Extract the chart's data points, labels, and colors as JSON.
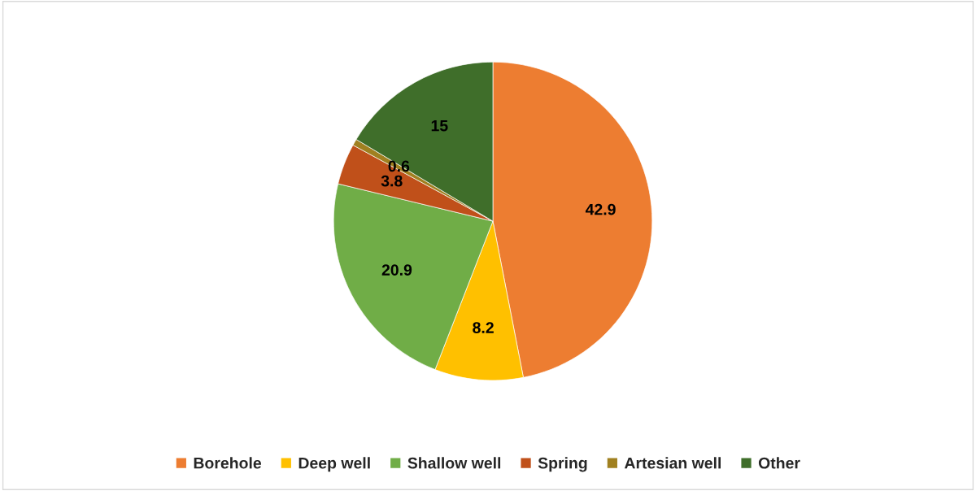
{
  "chart_data": {
    "type": "pie",
    "categories": [
      "Borehole",
      "Deep well",
      "Shallow well",
      "Spring",
      "Artesian well",
      "Other"
    ],
    "values": [
      42.9,
      8.2,
      20.9,
      3.8,
      0.6,
      15
    ],
    "colors": [
      "#ed7d31",
      "#ffc000",
      "#70ad47",
      "#c0501a",
      "#a08020",
      "#3f6e2a"
    ],
    "data_labels": true,
    "legend": "bottom"
  }
}
